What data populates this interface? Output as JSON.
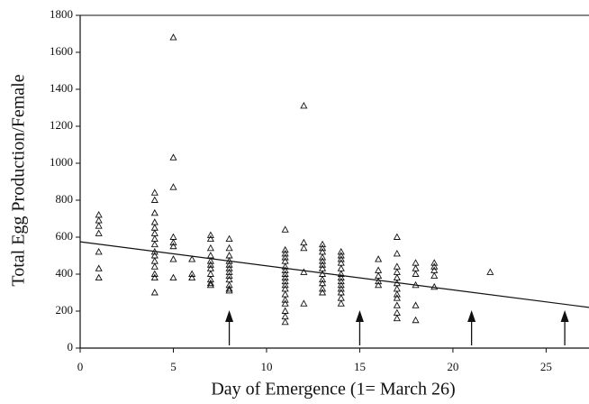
{
  "chart_data": {
    "type": "scatter",
    "xlabel": "Day of Emergence (1= March 26)",
    "ylabel": "Total Egg Production/Female",
    "xlim": [
      0,
      27.3
    ],
    "ylim": [
      0,
      1800
    ],
    "xticks": [
      0,
      5,
      10,
      15,
      20,
      25
    ],
    "yticks": [
      0,
      200,
      400,
      600,
      800,
      1000,
      1200,
      1400,
      1600,
      1800
    ],
    "color": "#111111",
    "x": [
      1,
      1,
      1,
      1,
      1,
      1,
      1,
      4,
      4,
      4,
      4,
      4,
      4,
      4,
      4,
      4,
      4,
      4,
      4,
      4,
      4,
      4,
      5,
      5,
      5,
      5,
      5,
      5,
      5,
      5,
      6,
      6,
      6,
      7,
      7,
      7,
      7,
      7,
      7,
      7,
      7,
      7,
      7,
      7,
      8,
      8,
      8,
      8,
      8,
      8,
      8,
      8,
      8,
      8,
      8,
      8,
      11,
      11,
      11,
      11,
      11,
      11,
      11,
      11,
      11,
      11,
      11,
      11,
      11,
      11,
      11,
      11,
      11,
      11,
      12,
      12,
      12,
      12,
      12,
      13,
      13,
      13,
      13,
      13,
      13,
      13,
      13,
      13,
      13,
      13,
      13,
      14,
      14,
      14,
      14,
      14,
      14,
      14,
      14,
      14,
      14,
      14,
      14,
      14,
      16,
      16,
      16,
      16,
      16,
      17,
      17,
      17,
      17,
      17,
      17,
      17,
      17,
      17,
      17,
      17,
      17,
      18,
      18,
      18,
      18,
      18,
      18,
      19,
      19,
      19,
      19,
      19,
      22
    ],
    "values": [
      720,
      690,
      660,
      620,
      520,
      430,
      380,
      840,
      800,
      730,
      680,
      650,
      620,
      590,
      560,
      520,
      500,
      470,
      440,
      400,
      380,
      300,
      1680,
      1030,
      870,
      600,
      570,
      550,
      480,
      380,
      480,
      400,
      380,
      610,
      590,
      540,
      500,
      470,
      450,
      430,
      400,
      370,
      350,
      340,
      590,
      540,
      500,
      470,
      450,
      430,
      410,
      390,
      370,
      340,
      320,
      310,
      640,
      530,
      510,
      490,
      470,
      440,
      420,
      400,
      380,
      360,
      340,
      320,
      290,
      260,
      240,
      200,
      170,
      140,
      1310,
      570,
      540,
      410,
      240,
      560,
      540,
      520,
      490,
      470,
      450,
      430,
      400,
      370,
      350,
      320,
      300,
      520,
      500,
      480,
      460,
      430,
      400,
      380,
      360,
      340,
      320,
      300,
      270,
      240,
      480,
      420,
      390,
      360,
      340,
      600,
      510,
      440,
      410,
      380,
      350,
      320,
      290,
      270,
      230,
      190,
      160,
      460,
      430,
      400,
      340,
      230,
      150,
      460,
      440,
      420,
      390,
      330,
      410
    ],
    "fit_line": {
      "x": [
        0,
        27.3
      ],
      "values": [
        575,
        220
      ]
    },
    "arrows": {
      "x": [
        8,
        15,
        21,
        26
      ],
      "top": 205
    }
  }
}
